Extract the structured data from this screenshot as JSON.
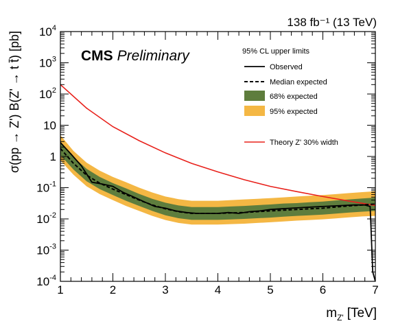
{
  "chart_data": {
    "type": "line",
    "lumi_label": "138 fb⁻¹ (13 TeV)",
    "experiment": "CMS",
    "status": "Preliminary",
    "xlabel": "m",
    "xlabel_sub": "Z'",
    "xlabel_unit": "[TeV]",
    "ylabel": "σ(pp → Z') B(Z' → t t̄) [pb]",
    "xlim": [
      1,
      7
    ],
    "ylim_log10": [
      -4,
      4
    ],
    "yscale": "log",
    "x_ticks": [
      "1",
      "2",
      "3",
      "4",
      "5",
      "6",
      "7"
    ],
    "y_ticks": [
      {
        "base": "10",
        "exp": "-4"
      },
      {
        "base": "10",
        "exp": "-3"
      },
      {
        "base": "10",
        "exp": "-2"
      },
      {
        "base": "10",
        "exp": "-1"
      },
      {
        "base": "1",
        "exp": ""
      },
      {
        "base": "10",
        "exp": ""
      },
      {
        "base": "10",
        "exp": "2"
      },
      {
        "base": "10",
        "exp": "3"
      },
      {
        "base": "10",
        "exp": "4"
      }
    ],
    "legend_header": "95% CL upper limits",
    "legend": {
      "observed": "Observed",
      "expected": "Median expected",
      "band68": "68% expected",
      "band95": "95% expected",
      "theory": "Theory Z' 30% width"
    },
    "colors": {
      "band68": "#5e7d3d",
      "band95": "#f4b744",
      "theory": "#e8201a",
      "observed": "#000000",
      "expected": "#000000"
    },
    "series": {
      "expected_x": [
        1.0,
        1.25,
        1.5,
        1.75,
        2.0,
        2.25,
        2.5,
        2.75,
        3.0,
        3.25,
        3.5,
        3.75,
        4.0,
        4.25,
        4.5,
        4.75,
        5.0,
        5.25,
        5.5,
        5.75,
        6.0,
        6.25,
        6.5,
        6.75,
        7.0
      ],
      "expected": [
        1.8,
        0.6,
        0.25,
        0.14,
        0.09,
        0.06,
        0.04,
        0.028,
        0.021,
        0.017,
        0.015,
        0.015,
        0.015,
        0.0155,
        0.016,
        0.017,
        0.018,
        0.019,
        0.02,
        0.021,
        0.022,
        0.024,
        0.026,
        0.028,
        0.03
      ],
      "band68_low": [
        1.1,
        0.38,
        0.16,
        0.09,
        0.058,
        0.038,
        0.026,
        0.018,
        0.013,
        0.0105,
        0.0093,
        0.0093,
        0.0093,
        0.0096,
        0.01,
        0.0105,
        0.011,
        0.0118,
        0.0125,
        0.013,
        0.0137,
        0.0148,
        0.016,
        0.017,
        0.018
      ],
      "band68_high": [
        3.0,
        0.95,
        0.4,
        0.22,
        0.14,
        0.095,
        0.063,
        0.044,
        0.033,
        0.027,
        0.024,
        0.024,
        0.024,
        0.025,
        0.026,
        0.0275,
        0.029,
        0.031,
        0.032,
        0.034,
        0.036,
        0.039,
        0.042,
        0.045,
        0.048
      ],
      "band95_low": [
        0.75,
        0.26,
        0.11,
        0.062,
        0.04,
        0.026,
        0.018,
        0.0125,
        0.0092,
        0.0074,
        0.0066,
        0.0066,
        0.0066,
        0.0068,
        0.007,
        0.0074,
        0.0078,
        0.0083,
        0.0088,
        0.0092,
        0.0097,
        0.0104,
        0.0112,
        0.012,
        0.0125
      ],
      "band95_high": [
        4.8,
        1.5,
        0.63,
        0.35,
        0.22,
        0.15,
        0.1,
        0.07,
        0.052,
        0.043,
        0.038,
        0.038,
        0.038,
        0.04,
        0.042,
        0.044,
        0.046,
        0.049,
        0.052,
        0.055,
        0.058,
        0.062,
        0.067,
        0.072,
        0.077
      ],
      "observed_x": [
        1.0,
        1.2,
        1.4,
        1.6,
        1.8,
        2.0,
        2.2,
        2.4,
        2.6,
        2.8,
        3.0,
        3.2,
        3.4,
        3.6,
        3.8,
        4.0,
        4.2,
        4.4,
        4.6,
        4.8,
        5.0,
        5.2,
        5.4,
        5.6,
        5.8,
        6.0,
        6.2,
        6.4,
        6.6,
        6.8,
        6.9,
        6.95,
        7.0
      ],
      "observed": [
        2.8,
        1.2,
        0.5,
        0.15,
        0.13,
        0.11,
        0.07,
        0.05,
        0.035,
        0.025,
        0.022,
        0.018,
        0.016,
        0.015,
        0.015,
        0.015,
        0.016,
        0.015,
        0.017,
        0.018,
        0.02,
        0.021,
        0.022,
        0.023,
        0.024,
        0.025,
        0.026,
        0.027,
        0.028,
        0.028,
        0.025,
        0.0002,
        0.0001
      ],
      "theory_x": [
        1.0,
        1.5,
        2.0,
        2.5,
        3.0,
        3.5,
        4.0,
        4.5,
        5.0,
        5.5,
        6.0,
        6.5,
        7.0
      ],
      "theory": [
        200,
        35,
        9,
        3.2,
        1.3,
        0.6,
        0.32,
        0.18,
        0.11,
        0.075,
        0.052,
        0.037,
        0.027
      ]
    }
  }
}
